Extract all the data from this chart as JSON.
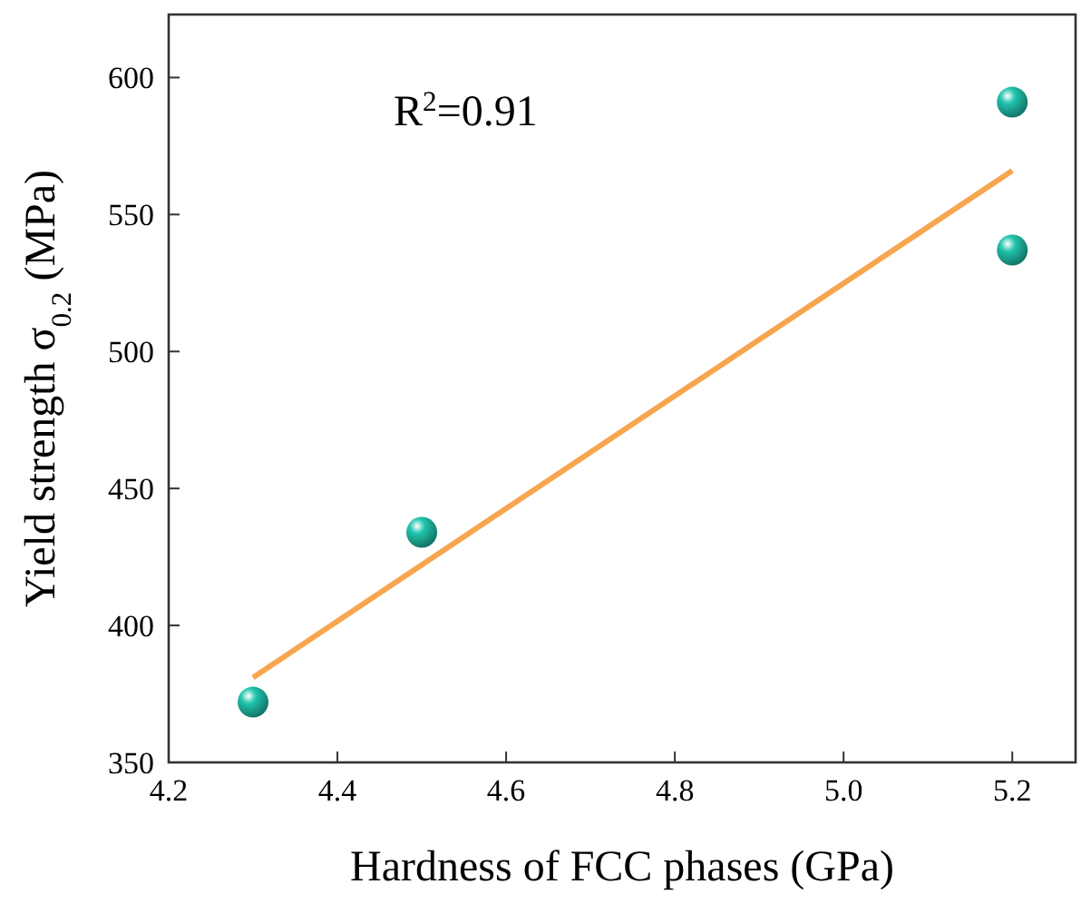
{
  "chart_data": {
    "type": "scatter",
    "xlabel": "Hardness of FCC phases (GPa)",
    "ylabel": "Yield strength σ$_{0.2}$ (MPa)",
    "xlim": [
      4.2,
      5.275
    ],
    "ylim": [
      350,
      623
    ],
    "xticks": [
      4.2,
      4.4,
      4.6,
      4.8,
      {
        "value": 5.0,
        "label": "5.0"
      },
      5.2
    ],
    "yticks": [
      350,
      400,
      450,
      500,
      550,
      600
    ],
    "grid": false,
    "marker": "circle",
    "annotations": [
      "R$^{2}$=0.91"
    ],
    "series": [
      {
        "color": "#1a9e8c",
        "x": [
          4.3,
          4.5,
          5.2,
          5.2
        ],
        "values": [
          372,
          434,
          591,
          537
        ]
      },
      {
        "type": "line",
        "color": "#f7a54f",
        "line_style": "solid",
        "marker": "none",
        "x": [
          4.3,
          5.2
        ],
        "values": [
          381,
          566
        ]
      }
    ]
  }
}
